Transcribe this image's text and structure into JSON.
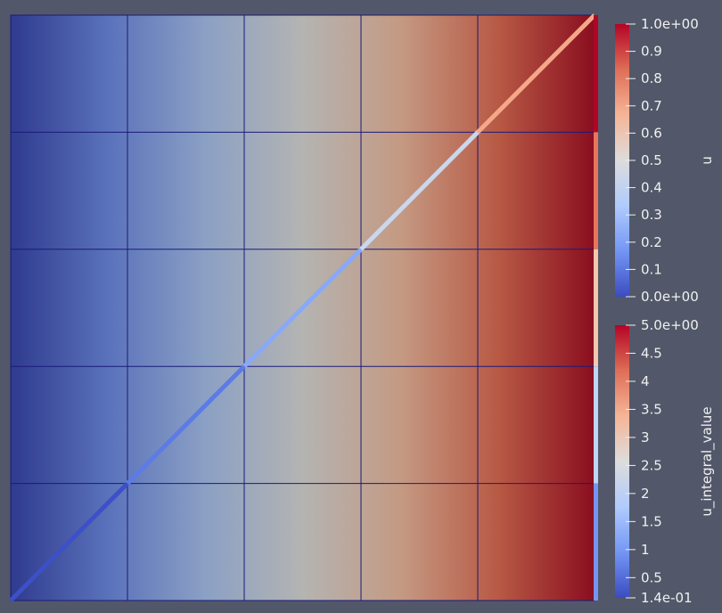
{
  "viewport": {
    "background_color": "#525869",
    "grid": {
      "cells_x": 5,
      "cells_y": 5,
      "edge_color": "#1a1a7a"
    },
    "field_colors": [
      "#2f3b8e",
      "#5a72bb",
      "#8ba0c4",
      "#b4b4b2",
      "#c49a83",
      "#b85a45",
      "#8a0e1f"
    ],
    "diagonal_line_segment_colors": [
      "#3d50c8",
      "#5c7be6",
      "#88a9f8",
      "#c9d7ef",
      "#f5a889"
    ],
    "right_edge_segment_colors": [
      "#b40426",
      "#e8765c",
      "#f3c8b0",
      "#c0d4f5",
      "#7396f5"
    ]
  },
  "colorbars": [
    {
      "title": "u",
      "range": [
        0,
        1
      ],
      "ticks": [
        "1.0e+00",
        "0.9",
        "0.8",
        "0.7",
        "0.6",
        "0.5",
        "0.4",
        "0.3",
        "0.2",
        "0.1",
        "0.0e+00"
      ],
      "tick_values": [
        1.0,
        0.9,
        0.8,
        0.7,
        0.6,
        0.5,
        0.4,
        0.3,
        0.2,
        0.1,
        0.0
      ],
      "colormap": [
        "#3b4cc0",
        "#7396f5",
        "#b0cbfc",
        "#dddcdc",
        "#f5b597",
        "#de6e56",
        "#b40426"
      ]
    },
    {
      "title": "u_integral_value",
      "range": [
        0.14,
        5.0
      ],
      "ticks": [
        "5.0e+00",
        "4.5",
        "4",
        "3.5",
        "3",
        "2.5",
        "2",
        "1.5",
        "1",
        "0.5",
        "1.4e-01"
      ],
      "tick_values": [
        5.0,
        4.5,
        4,
        3.5,
        3,
        2.5,
        2,
        1.5,
        1,
        0.5,
        0.14
      ],
      "colormap": [
        "#3b4cc0",
        "#7396f5",
        "#b0cbfc",
        "#dddcdc",
        "#f5b597",
        "#de6e56",
        "#b40426"
      ]
    }
  ]
}
